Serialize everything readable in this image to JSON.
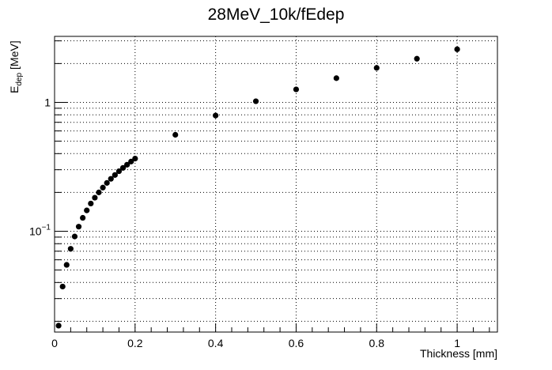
{
  "chart_data": {
    "type": "scatter",
    "title": "28MeV_10k/fEdep",
    "xlabel": "Thickness [mm]",
    "ylabel_main": "E",
    "ylabel_sub": "dep",
    "ylabel_unit": "[MeV]",
    "x_scale": "linear",
    "y_scale": "log",
    "xlim": [
      0,
      1.1
    ],
    "ylim": [
      0.0165,
      3.25
    ],
    "grid": true,
    "marker": "circle",
    "marker_color": "#000000",
    "x_tick_labels": [
      "0",
      "0.2",
      "0.4",
      "0.6",
      "0.8",
      "1"
    ],
    "y_tick_labels": [
      {
        "base": "10",
        "exp": "−1"
      },
      {
        "base": "1",
        "exp": ""
      }
    ],
    "points": [
      {
        "x": 0.01,
        "y": 0.0185
      },
      {
        "x": 0.02,
        "y": 0.0372
      },
      {
        "x": 0.03,
        "y": 0.0548
      },
      {
        "x": 0.04,
        "y": 0.073
      },
      {
        "x": 0.05,
        "y": 0.091
      },
      {
        "x": 0.06,
        "y": 0.1085
      },
      {
        "x": 0.07,
        "y": 0.127
      },
      {
        "x": 0.08,
        "y": 0.145
      },
      {
        "x": 0.09,
        "y": 0.164
      },
      {
        "x": 0.1,
        "y": 0.182
      },
      {
        "x": 0.11,
        "y": 0.2
      },
      {
        "x": 0.12,
        "y": 0.218
      },
      {
        "x": 0.13,
        "y": 0.237
      },
      {
        "x": 0.14,
        "y": 0.255
      },
      {
        "x": 0.15,
        "y": 0.273
      },
      {
        "x": 0.16,
        "y": 0.292
      },
      {
        "x": 0.17,
        "y": 0.31
      },
      {
        "x": 0.18,
        "y": 0.328
      },
      {
        "x": 0.19,
        "y": 0.347
      },
      {
        "x": 0.2,
        "y": 0.366
      },
      {
        "x": 0.3,
        "y": 0.56
      },
      {
        "x": 0.4,
        "y": 0.79
      },
      {
        "x": 0.5,
        "y": 1.02
      },
      {
        "x": 0.6,
        "y": 1.26
      },
      {
        "x": 0.7,
        "y": 1.54
      },
      {
        "x": 0.8,
        "y": 1.85
      },
      {
        "x": 0.9,
        "y": 2.18
      },
      {
        "x": 1.0,
        "y": 2.58
      }
    ]
  }
}
